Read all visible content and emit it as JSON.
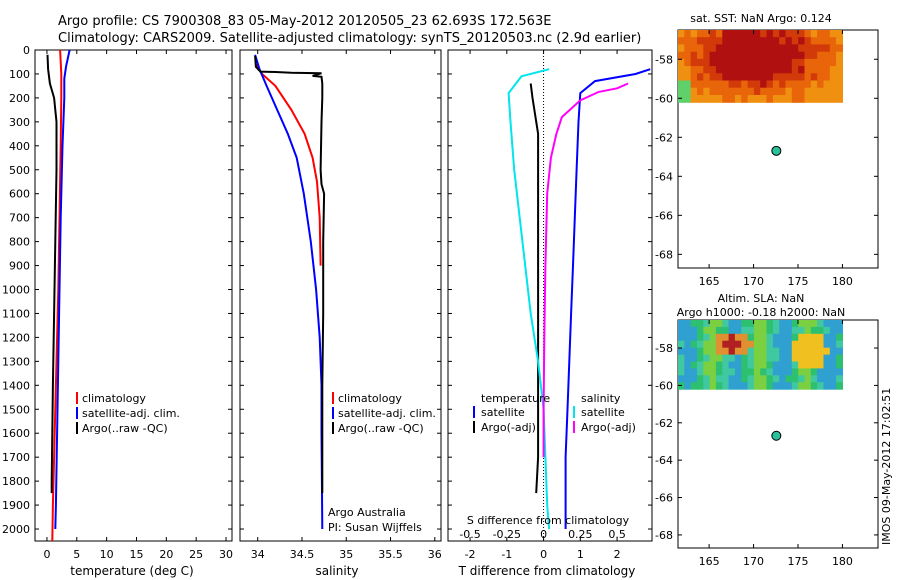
{
  "title_line1": "Argo profile: CS 7900308_83 05-May-2012 20120505_23 62.693S 172.563E",
  "title_line2": "Climatology: CARS2009. Satellite-adjusted climatology: synTS_20120503.nc (2.9d earlier)",
  "depth_ticks": [
    "0",
    "100",
    "200",
    "300",
    "400",
    "500",
    "600",
    "700",
    "800",
    "900",
    "1000",
    "1100",
    "1200",
    "1300",
    "1400",
    "1500",
    "1600",
    "1700",
    "1800",
    "1900",
    "2000"
  ],
  "colors": {
    "climatology": "#ff0000",
    "satellite": "#0000ff",
    "argo": "#000000",
    "cyan": "#00e5ee",
    "magenta": "#ff00ff",
    "marker": "#2bbf9a"
  },
  "chart_data": [
    {
      "type": "line",
      "id": "temperature",
      "xlabel": "temperature (deg C)",
      "xticks": [
        "0",
        "5",
        "10",
        "15",
        "20",
        "25",
        "30"
      ],
      "xlim": [
        -2,
        31
      ],
      "ylim": [
        2050,
        0
      ],
      "legend": [
        "climatology",
        "satellite-adj. clim.",
        "Argo(..raw -QC)"
      ],
      "series": [
        {
          "name": "climatology",
          "color": "#ff0000",
          "points": [
            [
              2.2,
              0
            ],
            [
              2.3,
              50
            ],
            [
              2.4,
              100
            ],
            [
              2.4,
              200
            ],
            [
              2.3,
              400
            ],
            [
              2.1,
              700
            ],
            [
              1.9,
              1000
            ],
            [
              1.6,
              1300
            ],
            [
              1.3,
              1600
            ],
            [
              1.0,
              1900
            ],
            [
              0.9,
              2050
            ]
          ]
        },
        {
          "name": "satellite-adj. clim.",
          "color": "#0000ff",
          "points": [
            [
              3.8,
              0
            ],
            [
              3.2,
              70
            ],
            [
              2.9,
              120
            ],
            [
              2.9,
              200
            ],
            [
              2.6,
              400
            ],
            [
              2.3,
              700
            ],
            [
              2.1,
              1000
            ],
            [
              1.9,
              1300
            ],
            [
              1.7,
              1600
            ],
            [
              1.5,
              1900
            ],
            [
              1.4,
              2000
            ]
          ]
        },
        {
          "name": "Argo(..raw -QC)",
          "color": "#000000",
          "points": [
            [
              0.1,
              20
            ],
            [
              0.2,
              80
            ],
            [
              0.5,
              140
            ],
            [
              1.2,
              200
            ],
            [
              1.6,
              300
            ],
            [
              1.6,
              500
            ],
            [
              1.4,
              800
            ],
            [
              1.2,
              1100
            ],
            [
              1.0,
              1400
            ],
            [
              0.9,
              1600
            ],
            [
              0.8,
              1800
            ],
            [
              0.8,
              1850
            ]
          ]
        }
      ]
    },
    {
      "type": "line",
      "id": "salinity",
      "xlabel": "salinity",
      "xticks": [
        "34",
        "34.5",
        "35",
        "35.5",
        "36"
      ],
      "xtick_values": [
        34,
        34.5,
        35,
        35.5,
        36
      ],
      "xlim": [
        33.8,
        36.07
      ],
      "ylim": [
        2050,
        0
      ],
      "legend": [
        "climatology",
        "satellite-adj. clim.",
        "Argo(..raw -QC)"
      ],
      "annotations": [
        "Argo Australia",
        "PI: Susan Wijffels"
      ],
      "series": [
        {
          "name": "climatology",
          "color": "#ff0000",
          "points": [
            [
              33.98,
              60
            ],
            [
              34.05,
              100
            ],
            [
              34.2,
              150
            ],
            [
              34.38,
              250
            ],
            [
              34.53,
              350
            ],
            [
              34.62,
              450
            ],
            [
              34.67,
              550
            ],
            [
              34.7,
              700
            ],
            [
              34.71,
              900
            ]
          ]
        },
        {
          "name": "satellite-adj. clim.",
          "color": "#0000ff",
          "points": [
            [
              33.97,
              20
            ],
            [
              34.02,
              80
            ],
            [
              34.1,
              150
            ],
            [
              34.22,
              250
            ],
            [
              34.34,
              350
            ],
            [
              34.44,
              450
            ],
            [
              34.52,
              600
            ],
            [
              34.6,
              800
            ],
            [
              34.66,
              1000
            ],
            [
              34.7,
              1200
            ],
            [
              34.72,
              1400
            ],
            [
              34.72,
              1600
            ],
            [
              34.73,
              2000
            ]
          ]
        },
        {
          "name": "Argo(..raw -QC)",
          "color": "#000000",
          "points": [
            [
              33.97,
              25
            ],
            [
              33.98,
              70
            ],
            [
              34.03,
              90
            ],
            [
              34.2,
              92
            ],
            [
              34.38,
              95
            ],
            [
              34.72,
              97
            ],
            [
              34.62,
              108
            ],
            [
              34.72,
              112
            ],
            [
              34.73,
              140
            ],
            [
              34.73,
              200
            ],
            [
              34.72,
              300
            ],
            [
              34.71,
              500
            ],
            [
              34.72,
              560
            ],
            [
              34.75,
              600
            ],
            [
              34.74,
              800
            ],
            [
              34.74,
              1100
            ],
            [
              34.73,
              1400
            ],
            [
              34.73,
              1700
            ],
            [
              34.73,
              1850
            ]
          ]
        }
      ]
    },
    {
      "type": "line",
      "id": "difference",
      "xlabel": "T difference from climatology",
      "xlabel_top": "S difference from climatology",
      "xticks": [
        "-2",
        "-1",
        "0",
        "1",
        "2"
      ],
      "xtick_values": [
        -2,
        -1,
        0,
        1,
        2
      ],
      "xticks_s": [
        "-0.5",
        "-0.25",
        "0",
        "0.25",
        "0.5"
      ],
      "xtick_values_s": [
        -0.5,
        -0.25,
        0,
        0.25,
        0.5
      ],
      "xlim": [
        -2.6,
        2.95
      ],
      "ylim": [
        2050,
        0
      ],
      "legend_left_title": "temperature",
      "legend_right_title": "salinity",
      "legend_left": [
        "satellite",
        "Argo(-adj)"
      ],
      "legend_right": [
        "satellite",
        "Argo(-adj)"
      ],
      "series": [
        {
          "name": "satellite",
          "color": "#0000ff",
          "points": [
            [
              2.9,
              80
            ],
            [
              2.5,
              100
            ],
            [
              1.4,
              130
            ],
            [
              1.0,
              180
            ],
            [
              0.95,
              300
            ],
            [
              0.9,
              500
            ],
            [
              0.85,
              700
            ],
            [
              0.8,
              900
            ],
            [
              0.75,
              1100
            ],
            [
              0.7,
              1300
            ],
            [
              0.65,
              1500
            ],
            [
              0.6,
              1700
            ],
            [
              0.6,
              1900
            ],
            [
              0.6,
              2000
            ]
          ]
        },
        {
          "name": "Argo(-adj)",
          "color": "#000000",
          "points": [
            [
              -0.35,
              140
            ],
            [
              -0.3,
              200
            ],
            [
              -0.15,
              350
            ],
            [
              -0.15,
              600
            ],
            [
              -0.15,
              900
            ],
            [
              -0.15,
              1200
            ],
            [
              -0.15,
              1500
            ],
            [
              -0.15,
              1700
            ],
            [
              -0.2,
              1850
            ]
          ]
        },
        {
          "name": "satellite",
          "color": "#00e5ee",
          "points": [
            [
              0.15,
              80
            ],
            [
              -0.6,
              110
            ],
            [
              -0.95,
              180
            ],
            [
              -0.9,
              300
            ],
            [
              -0.8,
              500
            ],
            [
              -0.65,
              700
            ],
            [
              -0.5,
              900
            ],
            [
              -0.35,
              1100
            ],
            [
              -0.15,
              1300
            ],
            [
              0.0,
              1500
            ],
            [
              0.05,
              1700
            ],
            [
              0.1,
              1900
            ],
            [
              0.15,
              2000
            ]
          ]
        },
        {
          "name": "Argo(-adj)",
          "color": "#ff00ff",
          "points": [
            [
              2.3,
              140
            ],
            [
              2.0,
              160
            ],
            [
              1.5,
              175
            ],
            [
              1.0,
              210
            ],
            [
              0.5,
              280
            ],
            [
              0.35,
              350
            ],
            [
              0.2,
              450
            ],
            [
              0.1,
              600
            ],
            [
              0.05,
              900
            ],
            [
              0.02,
              1200
            ],
            [
              0.0,
              1500
            ],
            [
              0.0,
              1700
            ]
          ]
        }
      ]
    },
    {
      "type": "heatmap",
      "id": "sst-map",
      "title": "sat. SST: NaN Argo: 0.124",
      "xticks": [
        "165",
        "170",
        "175",
        "180"
      ],
      "yticks": [
        "-58",
        "-60",
        "-62",
        "-64",
        "-66",
        "-68"
      ],
      "xlim": [
        161.5,
        184
      ],
      "ylim": [
        -56.5,
        -68.7
      ],
      "data_extent": {
        "lon": [
          161.5,
          180
        ],
        "lat": [
          -56.5,
          -60.2
        ]
      },
      "marker": {
        "lon": 172.563,
        "lat": -62.693
      }
    },
    {
      "type": "heatmap",
      "id": "sla-map",
      "title_line1": "Altim. SLA: NaN",
      "title_line2": "Argo h1000: -0.18 h2000: NaN",
      "xticks": [
        "165",
        "170",
        "175",
        "180"
      ],
      "yticks": [
        "-58",
        "-60",
        "-62",
        "-64",
        "-66",
        "-68"
      ],
      "xlim": [
        161.5,
        184
      ],
      "ylim": [
        -56.5,
        -68.7
      ],
      "data_extent": {
        "lon": [
          161.5,
          180
        ],
        "lat": [
          -56.5,
          -60.2
        ]
      },
      "marker": {
        "lon": 172.563,
        "lat": -62.693
      }
    }
  ],
  "side_stamp": "IMOS 09-May-2012 17:02:51"
}
